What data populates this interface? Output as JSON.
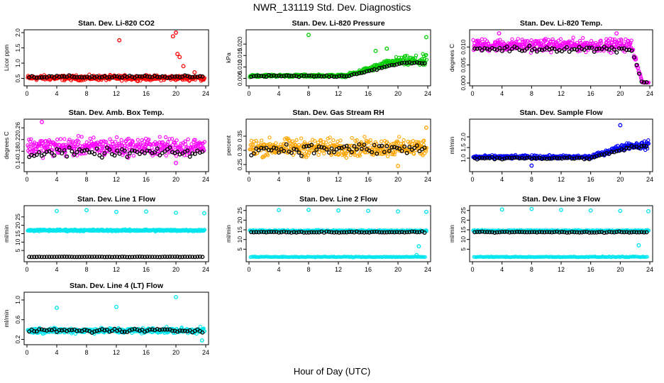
{
  "figure": {
    "title": "NWR_131119  Std. Dev. Diagnostics",
    "xlabel": "Hour of Day (UTC)"
  },
  "colors": {
    "red": "#ff0000",
    "green": "#00cc00",
    "magenta": "#ff00ff",
    "orange": "#ffa500",
    "blue": "#0000ff",
    "cyan": "#00e5ee",
    "black": "#000000"
  },
  "chart_data": [
    {
      "type": "scatter",
      "title": "Stan. Dev. Li-820 CO2",
      "ylabel": "Licor ppm",
      "color": "red",
      "xlim": [
        0,
        24
      ],
      "ylim": [
        0.35,
        2.0
      ],
      "xticks": [
        "0",
        "4",
        "8",
        "12",
        "16",
        "20",
        "24"
      ],
      "yticks": [
        {
          "v": 0.5,
          "label": "0.5"
        },
        {
          "v": 1.0,
          "label": "1.0"
        },
        {
          "v": 1.5,
          "label": "1.5"
        },
        {
          "v": 2.0,
          "label": "2.0"
        }
      ],
      "color_band": [
        0.52,
        0.12
      ],
      "black_band": [
        0.55,
        0.06
      ],
      "outliers": [
        [
          12.4,
          1.75
        ],
        [
          19.6,
          1.88
        ],
        [
          20.0,
          2.0
        ],
        [
          20.2,
          1.3
        ],
        [
          20.5,
          1.2
        ],
        [
          21.0,
          0.9
        ],
        [
          22.5,
          0.7
        ]
      ]
    },
    {
      "type": "scatter",
      "title": "Stan. Dev. Li-820 Pressure",
      "ylabel": "kPa",
      "color": "green",
      "xlim": [
        0,
        24
      ],
      "ylim": [
        0.003,
        0.025
      ],
      "xticks": [
        "0",
        "4",
        "8",
        "12",
        "16",
        "20",
        "24"
      ],
      "yticks": [
        {
          "v": 0.005,
          "label": "0.005"
        },
        {
          "v": 0.01,
          "label": "0.010"
        },
        {
          "v": 0.015,
          "label": "0.015"
        },
        {
          "v": 0.02,
          "label": "0.020"
        }
      ],
      "color_band": [
        0.0062,
        0.0008
      ],
      "black_band": [
        0.006,
        0.0006
      ],
      "rise": {
        "start": 13,
        "to": 0.0125,
        "spread": 0.004
      },
      "outliers": [
        [
          8.0,
          0.024
        ],
        [
          23.8,
          0.023
        ],
        [
          17.0,
          0.017
        ],
        [
          18.5,
          0.018
        ]
      ]
    },
    {
      "type": "scatter",
      "title": "Stan. Dev. Li-820 Temp.",
      "ylabel": "degrees C",
      "color": "magenta",
      "xlim": [
        0,
        24
      ],
      "ylim": [
        0.0,
        0.014
      ],
      "xticks": [
        "0",
        "4",
        "8",
        "12",
        "16",
        "20",
        "24"
      ],
      "yticks": [
        {
          "v": 0.0,
          "label": "0.000"
        },
        {
          "v": 0.005,
          "label": "0.005"
        },
        {
          "v": 0.01,
          "label": "0.010"
        }
      ],
      "color_band": [
        0.0105,
        0.0025
      ],
      "black_band": [
        0.0095,
        0.0012
      ],
      "drop": {
        "start": 21.5,
        "end": 23.0,
        "to": 0.0001
      },
      "outliers": [
        [
          3.6,
          0.0138
        ],
        [
          19.5,
          0.0138
        ]
      ]
    },
    {
      "type": "scatter",
      "title": "Stan. Dev. Amb. Box Temp.",
      "ylabel": "degrees C",
      "color": "magenta",
      "xlim": [
        0,
        24
      ],
      "ylim": [
        0.12,
        0.28
      ],
      "xticks": [
        "0",
        "4",
        "8",
        "12",
        "16",
        "20",
        "24"
      ],
      "yticks": [
        {
          "v": 0.14,
          "label": "0.14"
        },
        {
          "v": 0.18,
          "label": "0.18"
        },
        {
          "v": 0.22,
          "label": "0.22"
        },
        {
          "v": 0.26,
          "label": "0.26"
        }
      ],
      "color_band": [
        0.195,
        0.045
      ],
      "black_band": [
        0.175,
        0.022
      ],
      "outliers": [
        [
          2.0,
          0.28
        ],
        [
          20.0,
          0.14
        ]
      ]
    },
    {
      "type": "scatter",
      "title": "Stan. Dev. Gas Stream RH",
      "ylabel": "percent",
      "color": "orange",
      "xlim": [
        0,
        24
      ],
      "ylim": [
        0.235,
        0.4
      ],
      "xticks": [
        "0",
        "4",
        "8",
        "12",
        "16",
        "20",
        "24"
      ],
      "yticks": [
        {
          "v": 0.25,
          "label": "0.25"
        },
        {
          "v": 0.3,
          "label": "0.30"
        },
        {
          "v": 0.35,
          "label": "0.35"
        }
      ],
      "color_band": [
        0.31,
        0.045
      ],
      "black_band": [
        0.305,
        0.03
      ],
      "outliers": [
        [
          20.0,
          0.245
        ],
        [
          23.8,
          0.38
        ]
      ]
    },
    {
      "type": "scatter",
      "title": "Stan. Dev. Sample Flow",
      "ylabel": "ml/min",
      "color": "blue",
      "xlim": [
        0,
        24
      ],
      "ylim": [
        0.5,
        2.7
      ],
      "xticks": [
        "0",
        "4",
        "8",
        "12",
        "16",
        "20",
        "24"
      ],
      "yticks": [
        {
          "v": 1.0,
          "label": "1.0"
        },
        {
          "v": 1.5,
          "label": "1.5"
        },
        {
          "v": 2.0,
          "label": "2.0"
        }
      ],
      "color_band": [
        1.05,
        0.12
      ],
      "black_band": [
        1.0,
        0.08
      ],
      "rise": {
        "start": 16,
        "to": 1.6,
        "spread": 0.3
      },
      "outliers": [
        [
          20.0,
          2.55
        ],
        [
          8.0,
          0.65
        ]
      ]
    },
    {
      "type": "scatter",
      "title": "Stan. Dev. Line 1 Flow",
      "ylabel": "ml/min",
      "color": "cyan",
      "xlim": [
        0,
        24
      ],
      "ylim": [
        0,
        30
      ],
      "xticks": [
        "0",
        "4",
        "8",
        "12",
        "16",
        "20",
        "24"
      ],
      "yticks": [
        {
          "v": 5,
          "label": "5"
        },
        {
          "v": 10,
          "label": "10"
        },
        {
          "v": 15,
          "label": "15"
        },
        {
          "v": 20,
          "label": "20"
        },
        {
          "v": 25,
          "label": "25"
        }
      ],
      "color_band": [
        17.0,
        0.8
      ],
      "black_band": [
        1.2,
        0.15
      ],
      "outliers": [
        [
          4,
          28.5
        ],
        [
          8,
          29
        ],
        [
          12,
          28
        ],
        [
          16,
          28.2
        ],
        [
          20,
          27.5
        ],
        [
          23.8,
          27.2
        ]
      ]
    },
    {
      "type": "scatter",
      "title": "Stan. Dev. Line 2 Flow",
      "ylabel": "ml/min",
      "color": "cyan",
      "xlim": [
        0,
        24
      ],
      "ylim": [
        0,
        26
      ],
      "xticks": [
        "0",
        "4",
        "8",
        "12",
        "16",
        "20",
        "24"
      ],
      "yticks": [
        {
          "v": 5,
          "label": "5"
        },
        {
          "v": 10,
          "label": "10"
        },
        {
          "v": 15,
          "label": "15"
        },
        {
          "v": 20,
          "label": "20"
        },
        {
          "v": 25,
          "label": "25"
        }
      ],
      "color_band": [
        14.5,
        0.5
      ],
      "black_band": [
        13.8,
        0.4
      ],
      "base_band": [
        1.0,
        0.3
      ],
      "outliers": [
        [
          4,
          25.2
        ],
        [
          8,
          25.3
        ],
        [
          12,
          25
        ],
        [
          16,
          24.8
        ],
        [
          20,
          24.5
        ],
        [
          23.8,
          24.3
        ],
        [
          22.8,
          6.5
        ],
        [
          22.5,
          2.0
        ]
      ]
    },
    {
      "type": "scatter",
      "title": "Stan. Dev. Line 3 Flow",
      "ylabel": "ml/min",
      "color": "cyan",
      "xlim": [
        0,
        24
      ],
      "ylim": [
        0,
        26
      ],
      "xticks": [
        "0",
        "4",
        "8",
        "12",
        "16",
        "20",
        "24"
      ],
      "yticks": [
        {
          "v": 5,
          "label": "5"
        },
        {
          "v": 10,
          "label": "10"
        },
        {
          "v": 15,
          "label": "15"
        },
        {
          "v": 20,
          "label": "20"
        },
        {
          "v": 25,
          "label": "25"
        }
      ],
      "color_band": [
        14.5,
        0.5
      ],
      "black_band": [
        13.8,
        0.4
      ],
      "base_band": [
        1.0,
        0.3
      ],
      "outliers": [
        [
          4,
          25.5
        ],
        [
          8,
          25.8
        ],
        [
          12,
          25.3
        ],
        [
          16,
          25
        ],
        [
          20,
          24.8
        ],
        [
          23.8,
          24.6
        ],
        [
          22.5,
          7.0
        ]
      ]
    },
    {
      "type": "scatter",
      "title": "Stan. Dev. Line 4 (LT) Flow",
      "ylabel": "ml/min",
      "color": "cyan",
      "xlim": [
        0,
        24
      ],
      "ylim": [
        0.15,
        1.1
      ],
      "xticks": [
        "0",
        "4",
        "8",
        "12",
        "16",
        "20",
        "24"
      ],
      "yticks": [
        {
          "v": 0.2,
          "label": "0.2"
        },
        {
          "v": 0.6,
          "label": "0.6"
        },
        {
          "v": 1.0,
          "label": "1.0"
        }
      ],
      "color_band": [
        0.38,
        0.08
      ],
      "black_band": [
        0.38,
        0.06
      ],
      "outliers": [
        [
          4,
          0.84
        ],
        [
          12,
          0.86
        ],
        [
          20,
          1.06
        ],
        [
          23.5,
          0.18
        ]
      ]
    }
  ]
}
